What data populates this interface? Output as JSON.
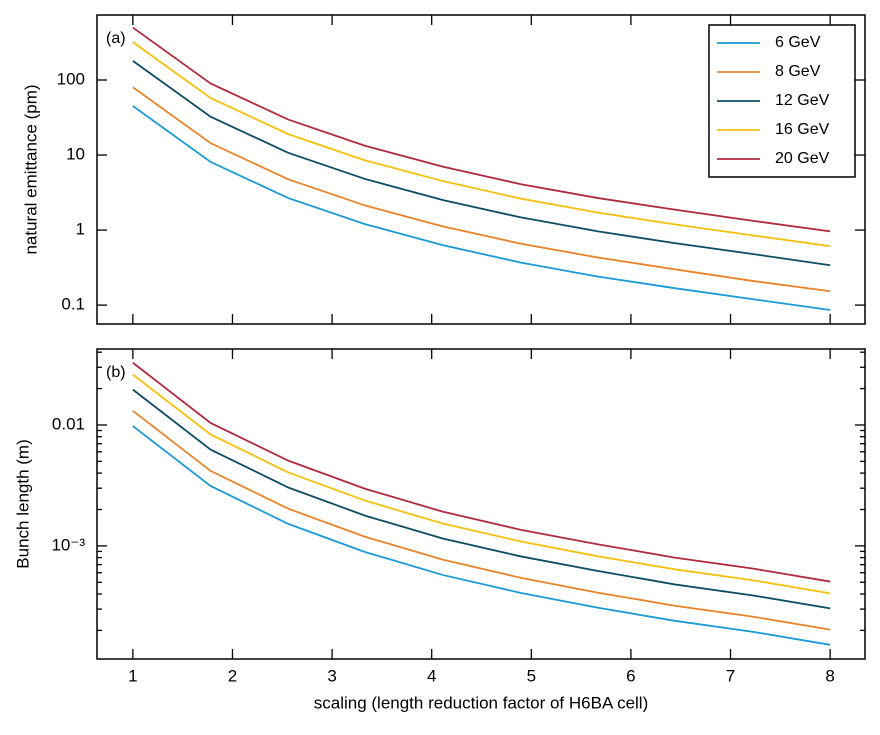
{
  "chart_data": [
    {
      "type": "line",
      "ylabel": "natural emittance (pm)",
      "annotation": "(a)",
      "x": [
        1,
        1.78,
        2.56,
        3.33,
        4.11,
        4.89,
        5.67,
        6.44,
        7.22,
        8
      ],
      "series": [
        {
          "name": "6 GeV",
          "color": "#1a9ad6",
          "values": [
            45,
            8.1,
            2.67,
            1.2,
            0.63,
            0.37,
            0.24,
            0.168,
            0.12,
            0.086
          ]
        },
        {
          "name": "8 GeV",
          "color": "#e8832a",
          "values": [
            80,
            14.4,
            4.75,
            2.13,
            1.12,
            0.66,
            0.43,
            0.3,
            0.21,
            0.153
          ]
        },
        {
          "name": "12 GeV",
          "color": "#0e4c63",
          "values": [
            180,
            32.4,
            10.7,
            4.8,
            2.52,
            1.48,
            0.96,
            0.67,
            0.48,
            0.34
          ]
        },
        {
          "name": "16 GeV",
          "color": "#f5c00e",
          "values": [
            320,
            57.6,
            19,
            8.5,
            4.5,
            2.63,
            1.71,
            1.19,
            0.85,
            0.61
          ]
        },
        {
          "name": "20 GeV",
          "color": "#b02a3e",
          "values": [
            500,
            90,
            29.7,
            13.3,
            7,
            4.1,
            2.67,
            1.87,
            1.33,
            0.96
          ]
        }
      ],
      "xlim": [
        0.64,
        8.35
      ],
      "xticks": [
        1,
        2,
        3,
        4,
        5,
        6,
        7,
        8
      ],
      "x_tick_labels": false,
      "ylim": [
        0.056,
        735
      ],
      "yticks": [
        0.1,
        1,
        10,
        100
      ],
      "log_y": true,
      "minor_ticks": false,
      "legend": "upper right"
    },
    {
      "type": "line",
      "ylabel": "Bunch length (m)",
      "xlabel": "scaling (length reduction factor of H6BA cell)",
      "annotation": "(b)",
      "x": [
        1,
        1.78,
        2.56,
        3.33,
        4.11,
        4.89,
        5.67,
        6.44,
        7.22,
        8
      ],
      "series": [
        {
          "name": "6 GeV",
          "color": "#1a9ad6",
          "values": [
            0.0098,
            0.00313,
            0.00152,
            0.00089,
            0.000575,
            0.000409,
            0.000308,
            0.00024,
            0.000195,
            0.000152
          ]
        },
        {
          "name": "8 GeV",
          "color": "#e8832a",
          "values": [
            0.0131,
            0.00417,
            0.00203,
            0.00119,
            0.00077,
            0.000545,
            0.00041,
            0.00032,
            0.00026,
            0.000203
          ]
        },
        {
          "name": "12 GeV",
          "color": "#0e4c63",
          "values": [
            0.0196,
            0.00626,
            0.00304,
            0.00178,
            0.00115,
            0.00082,
            0.00062,
            0.00048,
            0.00039,
            0.000304
          ]
        },
        {
          "name": "16 GeV",
          "color": "#f5c00e",
          "values": [
            0.0261,
            0.00835,
            0.00405,
            0.00237,
            0.00153,
            0.00109,
            0.00082,
            0.00064,
            0.00052,
            0.000405
          ]
        },
        {
          "name": "20 GeV",
          "color": "#b02a3e",
          "values": [
            0.0327,
            0.0104,
            0.00507,
            0.00297,
            0.00192,
            0.00136,
            0.00103,
            0.0008,
            0.00065,
            0.000507
          ]
        }
      ],
      "xlim": [
        0.64,
        8.35
      ],
      "xticks": [
        1,
        2,
        3,
        4,
        5,
        6,
        7,
        8
      ],
      "x_tick_labels": true,
      "ylim": [
        0.000116,
        0.0425
      ],
      "yticks": [
        0.01,
        {
          "value": 0.001,
          "label": "10⁻³"
        }
      ],
      "log_y": true,
      "minor_ticks": true
    }
  ]
}
